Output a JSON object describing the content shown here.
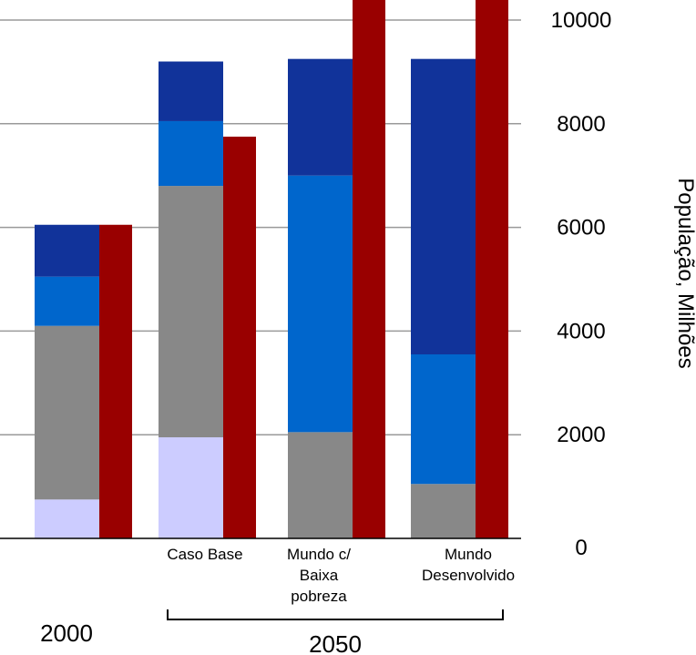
{
  "chart_data": {
    "type": "bar",
    "stacked": true,
    "ylabel": "População, Milhões",
    "ylim": [
      0,
      10000
    ],
    "yticks": [
      0,
      2000,
      4000,
      6000,
      8000,
      10000
    ],
    "grid": true,
    "groups": [
      "2000",
      "2050"
    ],
    "categories": [
      {
        "label": "",
        "group": "2000"
      },
      {
        "label": "Caso Base",
        "group": "2050"
      },
      {
        "label": "Mundo c/ Baixa pobreza",
        "group": "2050"
      },
      {
        "label": "Mundo Desenvolvido",
        "group": "2050"
      }
    ],
    "stack_colors": [
      "#ccccff",
      "#888888",
      "#0066cc",
      "#11339a"
    ],
    "stacks": [
      [
        750,
        4100,
        5050,
        6050
      ],
      [
        1950,
        6800,
        8050,
        9200
      ],
      [
        0,
        2050,
        7000,
        9250
      ],
      [
        0,
        1050,
        3550,
        9250
      ]
    ],
    "secondary_color": "#990000",
    "secondary_values": [
      6050,
      7750,
      10600,
      10600
    ]
  }
}
